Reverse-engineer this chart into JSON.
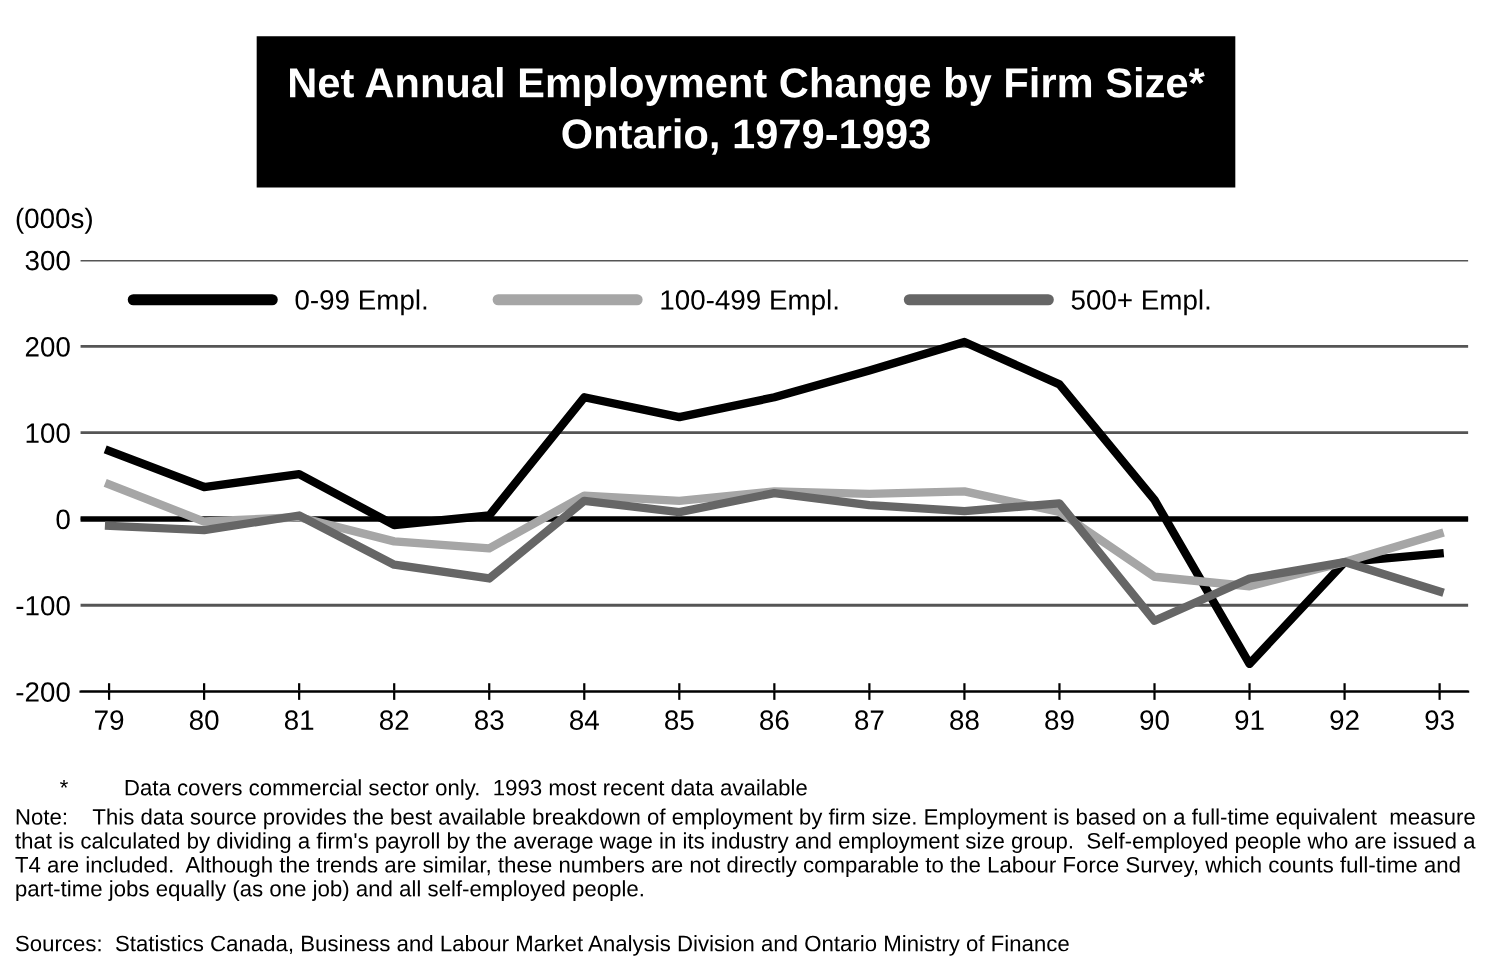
{
  "chart_data": {
    "type": "line",
    "title": "Net Annual Employment Change by Firm Size*\nOntario, 1979-1993",
    "ylabel": "(000s)",
    "categories": [
      "79",
      "80",
      "81",
      "82",
      "83",
      "84",
      "85",
      "86",
      "87",
      "88",
      "89",
      "90",
      "91",
      "92",
      "93"
    ],
    "series": [
      {
        "name": "0-99 Empl.",
        "color": "#000000",
        "values": [
          79,
          37,
          52,
          -7,
          4,
          141,
          118,
          141,
          172,
          205,
          156,
          22,
          -168,
          -50,
          -40
        ]
      },
      {
        "name": "100-499 Empl.",
        "color": "#a6a6a6",
        "values": [
          40,
          -3,
          2,
          -26,
          -34,
          27,
          21,
          32,
          29,
          32,
          8,
          -67,
          -78,
          -50,
          -17
        ]
      },
      {
        "name": "500+ Empl.",
        "color": "#666666",
        "values": [
          -8,
          -13,
          4,
          -53,
          -69,
          21,
          8,
          30,
          16,
          9,
          18,
          -118,
          -69,
          -50,
          -84
        ]
      }
    ],
    "ylim": [
      -200,
      300
    ],
    "yticks": [
      -200,
      -100,
      0,
      100,
      200,
      300
    ],
    "grid": "y",
    "legend": "top left",
    "marker": "none",
    "line_style": "solid",
    "ref_lines": [
      {
        "axis": "y",
        "value": 0,
        "color": "#000000"
      }
    ],
    "annotations": [
      "*         Data covers commercial sector only.  1993 most recent data available",
      "Note:    This data source provides the best available breakdown of employment by firm size. Employment is based on a full-time equivalent  measure that is calculated by dividing a firm's payroll by the average wage in its industry and employment size group.  Self-employed people who are issued a T4 are included.  Although the trends are similar, these numbers are not directly comparable to the Labour Force Survey, which counts full-time and part-time jobs equally (as one job) and all self-employed people.",
      "Sources:  Statistics Canada, Business and Labour Market Analysis Division and Ontario Ministry of Finance"
    ]
  }
}
